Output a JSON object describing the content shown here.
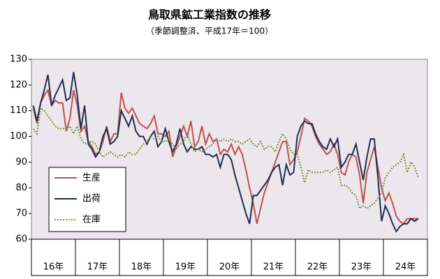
{
  "chart_data": {
    "type": "line",
    "title": "鳥取県鉱工業指数の推移",
    "subtitle": "（季節調整済、平成17年＝100）",
    "categories": [
      "16年",
      null,
      null,
      null,
      null,
      null,
      null,
      null,
      null,
      null,
      null,
      null,
      "17年",
      null,
      null,
      null,
      null,
      null,
      null,
      null,
      null,
      null,
      null,
      null,
      "18年",
      null,
      null,
      null,
      null,
      null,
      null,
      null,
      null,
      null,
      null,
      null,
      "19年",
      null,
      null,
      null,
      null,
      null,
      null,
      null,
      null,
      null,
      null,
      null,
      "20年",
      null,
      null,
      null,
      null,
      null,
      null,
      null,
      null,
      null,
      null,
      null,
      "21年",
      null,
      null,
      null,
      null,
      null,
      null,
      null,
      null,
      null,
      null,
      null,
      "22年",
      null,
      null,
      null,
      null,
      null,
      null,
      null,
      null,
      null,
      null,
      null,
      "23年",
      null,
      null,
      null,
      null,
      null,
      null,
      null,
      null,
      null,
      null,
      null,
      "24年",
      null,
      null,
      null,
      null,
      null,
      null,
      null,
      null,
      null,
      null,
      null
    ],
    "series": [
      {
        "name": "生産",
        "color": "#c0504d",
        "style": "solid",
        "values": [
          111,
          105,
          113,
          116,
          118,
          112,
          114,
          113,
          113,
          102,
          107,
          118,
          112,
          102,
          104,
          98,
          96,
          93,
          94,
          98,
          104,
          98,
          101,
          101,
          117,
          111,
          109,
          111,
          108,
          105,
          104,
          103,
          105,
          108,
          101,
          101,
          100,
          102,
          92,
          96,
          100,
          104,
          100,
          106,
          96,
          98,
          104,
          97,
          101,
          98,
          99,
          93,
          95,
          94,
          97,
          93,
          96,
          93,
          87,
          80,
          74,
          66,
          72,
          78,
          82,
          86,
          90,
          94,
          98,
          98,
          89,
          91,
          94,
          100,
          107,
          106,
          104,
          100,
          97,
          95,
          93,
          94,
          97,
          93,
          86,
          85,
          90,
          93,
          92,
          85,
          74,
          86,
          91,
          96,
          88,
          80,
          75,
          78,
          74,
          69,
          67,
          66,
          68,
          68,
          68,
          68,
          null,
          null
        ]
      },
      {
        "name": "出荷",
        "color": "#1f2d4f",
        "style": "solid",
        "values": [
          112,
          106,
          113,
          118,
          124,
          112,
          116,
          119,
          122,
          114,
          115,
          125,
          116,
          103,
          112,
          97,
          95,
          92,
          94,
          100,
          103,
          97,
          98,
          100,
          110,
          107,
          104,
          108,
          102,
          100,
          100,
          97,
          100,
          102,
          96,
          98,
          103,
          98,
          94,
          97,
          103,
          97,
          94,
          96,
          95,
          95,
          96,
          93,
          93,
          92,
          93,
          88,
          93,
          93,
          91,
          85,
          80,
          75,
          70,
          66,
          77,
          77,
          79,
          81,
          83,
          86,
          88,
          89,
          81,
          89,
          85,
          86,
          100,
          104,
          106,
          105,
          105,
          101,
          98,
          96,
          95,
          99,
          96,
          99,
          88,
          90,
          93,
          93,
          97,
          90,
          83,
          92,
          99,
          99,
          84,
          67,
          73,
          70,
          66,
          63,
          65,
          66,
          66,
          68,
          67,
          68,
          null,
          null
        ]
      },
      {
        "name": "在庫",
        "color": "#77933c",
        "style": "dotted",
        "values": [
          103,
          101,
          111,
          110,
          108,
          106,
          104,
          103,
          103,
          103,
          104,
          101,
          104,
          99,
          97,
          98,
          98,
          97,
          94,
          92,
          93,
          94,
          93,
          92,
          93,
          92,
          94,
          93,
          93,
          95,
          97,
          98,
          100,
          99,
          100,
          98,
          98,
          99,
          97,
          95,
          97,
          98,
          101,
          97,
          94,
          95,
          94,
          95,
          96,
          97,
          99,
          98,
          99,
          98,
          99,
          98,
          98,
          97,
          98,
          99,
          97,
          96,
          98,
          95,
          96,
          96,
          94,
          98,
          101,
          99,
          95,
          93,
          93,
          88,
          82,
          87,
          86,
          86,
          86,
          86,
          87,
          86,
          87,
          88,
          81,
          81,
          80,
          78,
          77,
          72,
          73,
          72,
          73,
          74,
          76,
          78,
          84,
          86,
          88,
          89,
          90,
          93,
          86,
          90,
          88,
          84,
          null,
          null
        ]
      }
    ],
    "ylim": [
      60,
      130
    ],
    "yticks": [
      60,
      70,
      80,
      90,
      100,
      110,
      120,
      130
    ],
    "grid": false,
    "legend": "lower left"
  }
}
